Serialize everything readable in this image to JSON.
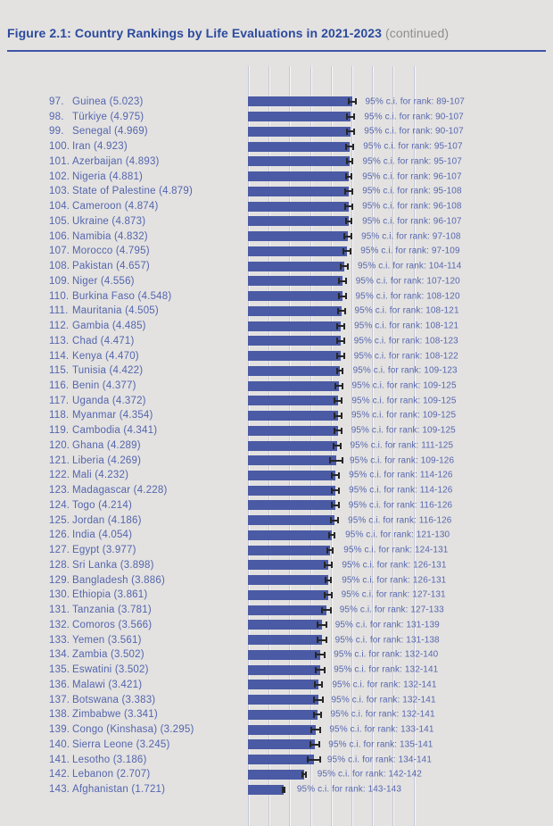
{
  "header": {
    "title": "Figure 2.1: Country Rankings by Life Evaluations in 2021-2023",
    "continued": "(continued)",
    "title_color": "#2c4a9d",
    "continued_color": "#8d8d8d",
    "rule_color": "#3f54a6"
  },
  "chart_data": {
    "type": "bar",
    "orientation": "horizontal",
    "title": "Country Rankings by Life Evaluations in 2021-2023 (continued)",
    "xlabel": "",
    "ylabel": "",
    "xlim": [
      0,
      8
    ],
    "gridline_interval": 1,
    "grid": true,
    "tick_labels_shown": false,
    "bar_color": "#4a5aa4",
    "errorbar_color": "#262626",
    "label_color": "#5465ad",
    "ci_color": "#5767ae",
    "ci_label_prefix": "95% c.i. for rank: ",
    "rows": [
      {
        "rank": 97,
        "country": "Guinea",
        "score": "5.023",
        "ci_rank": "89-107",
        "ew": 5
      },
      {
        "rank": 98,
        "country": "Türkiye",
        "score": "4.975",
        "ci_rank": "90-107",
        "ew": 5
      },
      {
        "rank": 99,
        "country": "Senegal",
        "score": "4.969",
        "ci_rank": "90-107",
        "ew": 5
      },
      {
        "rank": 100,
        "country": "Iran",
        "score": "4.923",
        "ci_rank": "95-107",
        "ew": 5
      },
      {
        "rank": 101,
        "country": "Azerbaijan",
        "score": "4.893",
        "ci_rank": "95-107",
        "ew": 4
      },
      {
        "rank": 102,
        "country": "Nigeria",
        "score": "4.881",
        "ci_rank": "96-107",
        "ew": 4
      },
      {
        "rank": 103,
        "country": "State of Palestine",
        "score": "4.879",
        "ci_rank": "95-108",
        "ew": 5
      },
      {
        "rank": 104,
        "country": "Cameroon",
        "score": "4.874",
        "ci_rank": "96-108",
        "ew": 5
      },
      {
        "rank": 105,
        "country": "Ukraine",
        "score": "4.873",
        "ci_rank": "96-107",
        "ew": 4
      },
      {
        "rank": 106,
        "country": "Namibia",
        "score": "4.832",
        "ci_rank": "97-108",
        "ew": 5
      },
      {
        "rank": 107,
        "country": "Morocco",
        "score": "4.795",
        "ci_rank": "97-109",
        "ew": 5
      },
      {
        "rank": 108,
        "country": "Pakistan",
        "score": "4.657",
        "ci_rank": "104-114",
        "ew": 5
      },
      {
        "rank": 109,
        "country": "Niger",
        "score": "4.556",
        "ci_rank": "107-120",
        "ew": 5
      },
      {
        "rank": 110,
        "country": "Burkina Faso",
        "score": "4.548",
        "ci_rank": "108-120",
        "ew": 5
      },
      {
        "rank": 111,
        "country": "Mauritania",
        "score": "4.505",
        "ci_rank": "108-121",
        "ew": 5
      },
      {
        "rank": 112,
        "country": "Gambia",
        "score": "4.485",
        "ci_rank": "108-121",
        "ew": 5
      },
      {
        "rank": 113,
        "country": "Chad",
        "score": "4.471",
        "ci_rank": "108-123",
        "ew": 5
      },
      {
        "rank": 114,
        "country": "Kenya",
        "score": "4.470",
        "ci_rank": "108-122",
        "ew": 5
      },
      {
        "rank": 115,
        "country": "Tunisia",
        "score": "4.422",
        "ci_rank": "109-123",
        "ew": 4
      },
      {
        "rank": 116,
        "country": "Benin",
        "score": "4.377",
        "ci_rank": "109-125",
        "ew": 5
      },
      {
        "rank": 117,
        "country": "Uganda",
        "score": "4.372",
        "ci_rank": "109-125",
        "ew": 5
      },
      {
        "rank": 118,
        "country": "Myanmar",
        "score": "4.354",
        "ci_rank": "109-125",
        "ew": 5
      },
      {
        "rank": 119,
        "country": "Cambodia",
        "score": "4.341",
        "ci_rank": "109-125",
        "ew": 5
      },
      {
        "rank": 120,
        "country": "Ghana",
        "score": "4.289",
        "ci_rank": "111-125",
        "ew": 5
      },
      {
        "rank": 121,
        "country": "Liberia",
        "score": "4.269",
        "ci_rank": "109-126",
        "ew": 8
      },
      {
        "rank": 122,
        "country": "Mali",
        "score": "4.232",
        "ci_rank": "114-126",
        "ew": 5
      },
      {
        "rank": 123,
        "country": "Madagascar",
        "score": "4.228",
        "ci_rank": "114-126",
        "ew": 5
      },
      {
        "rank": 124,
        "country": "Togo",
        "score": "4.214",
        "ci_rank": "116-126",
        "ew": 5
      },
      {
        "rank": 125,
        "country": "Jordan",
        "score": "4.186",
        "ci_rank": "116-126",
        "ew": 5
      },
      {
        "rank": 126,
        "country": "India",
        "score": "4.054",
        "ci_rank": "121-130",
        "ew": 4
      },
      {
        "rank": 127,
        "country": "Egypt",
        "score": "3.977",
        "ci_rank": "124-131",
        "ew": 4
      },
      {
        "rank": 128,
        "country": "Sri Lanka",
        "score": "3.898",
        "ci_rank": "126-131",
        "ew": 5
      },
      {
        "rank": 129,
        "country": "Bangladesh",
        "score": "3.886",
        "ci_rank": "126-131",
        "ew": 4
      },
      {
        "rank": 130,
        "country": "Ethiopia",
        "score": "3.861",
        "ci_rank": "127-131",
        "ew": 5
      },
      {
        "rank": 131,
        "country": "Tanzania",
        "score": "3.781",
        "ci_rank": "127-133",
        "ew": 6
      },
      {
        "rank": 132,
        "country": "Comoros",
        "score": "3.566",
        "ci_rank": "131-139",
        "ew": 6
      },
      {
        "rank": 133,
        "country": "Yemen",
        "score": "3.561",
        "ci_rank": "131-138",
        "ew": 6
      },
      {
        "rank": 134,
        "country": "Zambia",
        "score": "3.502",
        "ci_rank": "132-140",
        "ew": 6
      },
      {
        "rank": 135,
        "country": "Eswatini",
        "score": "3.502",
        "ci_rank": "132-141",
        "ew": 6
      },
      {
        "rank": 136,
        "country": "Malawi",
        "score": "3.421",
        "ci_rank": "132-141",
        "ew": 5
      },
      {
        "rank": 137,
        "country": "Botswana",
        "score": "3.383",
        "ci_rank": "132-141",
        "ew": 6
      },
      {
        "rank": 138,
        "country": "Zimbabwe",
        "score": "3.341",
        "ci_rank": "132-141",
        "ew": 5
      },
      {
        "rank": 139,
        "country": "Congo  (Kinshasa)",
        "score": "3.295",
        "ci_rank": "133-141",
        "ew": 6
      },
      {
        "rank": 140,
        "country": "Sierra Leone",
        "score": "3.245",
        "ci_rank": "135-141",
        "ew": 6
      },
      {
        "rank": 141,
        "country": "Lesotho",
        "score": "3.186",
        "ci_rank": "134-141",
        "ew": 8
      },
      {
        "rank": 142,
        "country": "Lebanon",
        "score": "2.707",
        "ci_rank": "142-142",
        "ew": 3
      },
      {
        "rank": 143,
        "country": "Afghanistan",
        "score": "1.721",
        "ci_rank": "143-143",
        "ew": 2
      }
    ]
  }
}
